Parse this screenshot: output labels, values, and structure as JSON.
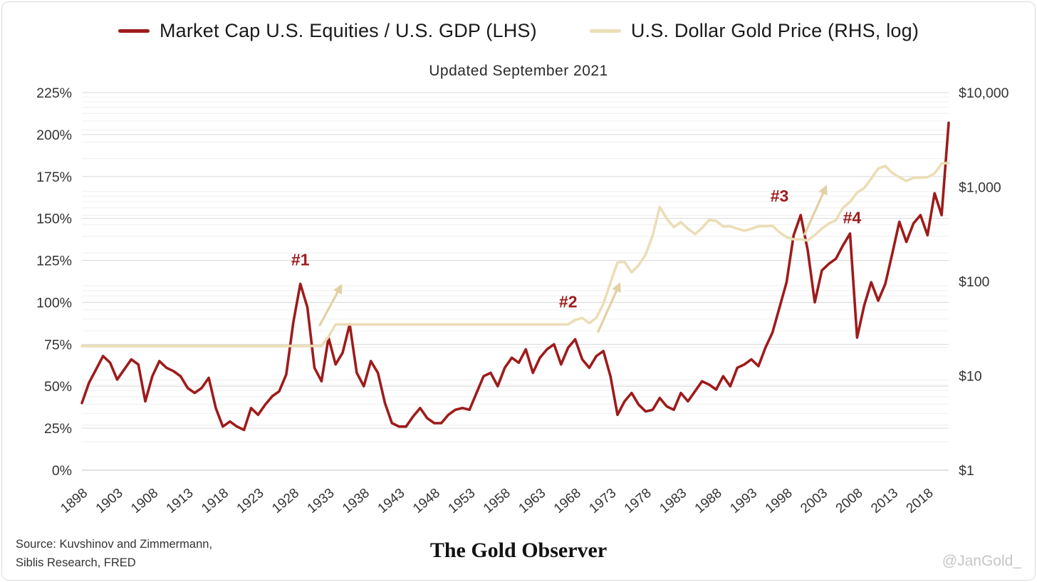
{
  "legend": [
    {
      "label": "Market Cap U.S. Equities / U.S. GDP (LHS)",
      "color": "#9E1B1B"
    },
    {
      "label": "U.S. Dollar Gold Price (RHS, log)",
      "color": "#EBDDB6"
    }
  ],
  "subtitle": "Updated September 2021",
  "footer": {
    "source_line1": "Source: Kuvshinov and Zimmermann,",
    "source_line2": "Siblis Research, FRED",
    "brand": "The Gold Observer",
    "handle": "@JanGold_"
  },
  "chart_data": {
    "type": "line",
    "title": "Updated September 2021",
    "x_start_year": 1898,
    "x_end_year": 2021,
    "x_tick_years": [
      1898,
      1903,
      1908,
      1913,
      1918,
      1923,
      1928,
      1933,
      1938,
      1943,
      1948,
      1953,
      1958,
      1963,
      1968,
      1973,
      1978,
      1983,
      1988,
      1993,
      1998,
      2003,
      2008,
      2013,
      2018
    ],
    "left_axis": {
      "min": 0,
      "max": 225,
      "tick_step": 25,
      "suffix": "%"
    },
    "right_axis": {
      "log": true,
      "min": 1,
      "max": 10000,
      "ticks": [
        1,
        10,
        100,
        1000,
        10000
      ],
      "prefix": "$"
    },
    "grid": {
      "major_color": "#d9d9d9",
      "minor_color": "#efefef",
      "axis_color": "#c2c2c2"
    },
    "annotation_color": "#9E1B1B",
    "arrow_color": "#E3D0A4",
    "series": [
      {
        "name": "Market Cap U.S. Equities / U.S. GDP (LHS)",
        "axis": "left",
        "color": "#9E1B1B",
        "width": 3.6,
        "values": [
          40,
          52,
          60,
          68,
          64,
          54,
          60,
          66,
          63,
          41,
          56,
          65,
          61,
          59,
          56,
          49,
          46,
          49,
          55,
          37,
          26,
          29,
          26,
          24,
          37,
          33,
          39,
          44,
          47,
          57,
          88,
          111,
          97,
          61,
          53,
          79,
          63,
          70,
          87,
          58,
          50,
          65,
          58,
          40,
          28,
          26,
          26,
          32,
          37,
          31,
          28,
          28,
          33,
          36,
          37,
          36,
          46,
          56,
          58,
          50,
          61,
          67,
          64,
          72,
          58,
          67,
          72,
          75,
          63,
          73,
          78,
          66,
          61,
          68,
          71,
          56,
          33,
          41,
          46,
          39,
          35,
          36,
          43,
          38,
          36,
          46,
          41,
          47,
          53,
          51,
          48,
          56,
          50,
          61,
          63,
          66,
          62,
          73,
          82,
          97,
          112,
          140,
          152,
          131,
          100,
          119,
          123,
          126,
          134,
          141,
          79,
          98,
          112,
          101,
          111,
          129,
          148,
          136,
          147,
          152,
          140,
          165,
          152,
          207
        ]
      },
      {
        "name": "U.S. Dollar Gold Price (RHS, log)",
        "axis": "right",
        "color": "#EBDDB6",
        "width": 3.6,
        "values": [
          20.67,
          20.67,
          20.67,
          20.67,
          20.67,
          20.67,
          20.67,
          20.67,
          20.67,
          20.67,
          20.67,
          20.67,
          20.67,
          20.67,
          20.67,
          20.67,
          20.67,
          20.67,
          20.67,
          20.67,
          20.67,
          20.67,
          20.67,
          20.67,
          20.67,
          20.67,
          20.67,
          20.67,
          20.67,
          20.67,
          20.67,
          20.67,
          20.67,
          20.67,
          20.67,
          26,
          35,
          35,
          35,
          35,
          35,
          35,
          35,
          35,
          35,
          35,
          35,
          35,
          35,
          35,
          35,
          35,
          35,
          35,
          35,
          35,
          35,
          35,
          35,
          35,
          35,
          35,
          35,
          35,
          35,
          35,
          35,
          35,
          35,
          35,
          39,
          41,
          36,
          41,
          58,
          97,
          159,
          161,
          125,
          148,
          193,
          307,
          615,
          460,
          376,
          424,
          361,
          317,
          368,
          447,
          437,
          381,
          384,
          362,
          344,
          360,
          384,
          384,
          388,
          331,
          294,
          279,
          279,
          271,
          310,
          363,
          410,
          445,
          603,
          695,
          872,
          972,
          1225,
          1572,
          1669,
          1411,
          1266,
          1160,
          1251,
          1257,
          1268,
          1393,
          1770,
          1800
        ]
      }
    ],
    "annotations": [
      {
        "label": "#1",
        "year": 1929,
        "pct": 122
      },
      {
        "label": "#2",
        "year": 1967,
        "pct": 97
      },
      {
        "label": "#3",
        "year": 1997,
        "pct": 160
      },
      {
        "label": "#4",
        "year": 2007.3,
        "pct": 147
      }
    ],
    "arrows": [
      {
        "year1": 1931.7,
        "pct1": 86,
        "year2": 1934.8,
        "pct2": 110
      },
      {
        "year1": 1971.2,
        "pct1": 82,
        "year2": 1974.3,
        "pct2": 111
      },
      {
        "year1": 2000.5,
        "pct1": 140,
        "year2": 2003.6,
        "pct2": 169
      }
    ]
  }
}
